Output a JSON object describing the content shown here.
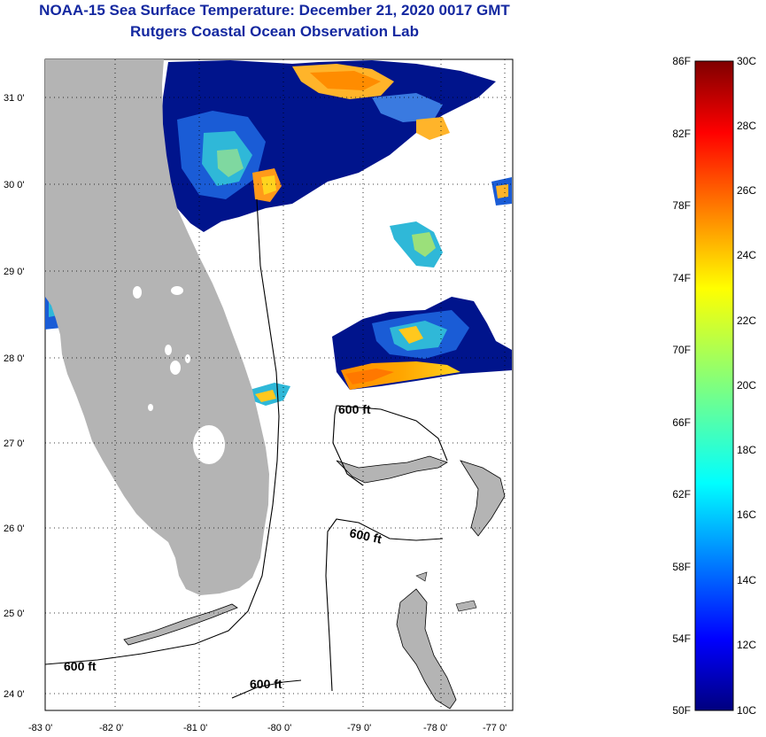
{
  "header": {
    "title_line1": "NOAA-15 Sea Surface Temperature:  December 21, 2020 0017 GMT",
    "title_line2": "Rutgers Coastal Ocean Observation Lab"
  },
  "map": {
    "lon_labels": [
      "-83 0'",
      "-82 0'",
      "-81 0'",
      "-80 0'",
      "-79 0'",
      "-78 0'",
      "-77 0'"
    ],
    "lat_labels": [
      "31 0'",
      "30 0'",
      "29 0'",
      "28 0'",
      "27 0'",
      "26 0'",
      "25 0'",
      "24 0'"
    ],
    "isobath_labels": [
      "600 ft",
      "600 ft",
      "600 ft",
      "600 ft"
    ],
    "colors": {
      "land": "#b4b4b4",
      "ocean": "#ffffff",
      "cold": "#00008c",
      "warm": "#ff8c00"
    }
  },
  "colorbar": {
    "fahrenheit_labels": [
      "86F",
      "82F",
      "78F",
      "74F",
      "70F",
      "66F",
      "62F",
      "58F",
      "54F",
      "50F"
    ],
    "celsius_labels": [
      "30C",
      "28C",
      "26C",
      "24C",
      "22C",
      "20C",
      "18C",
      "16C",
      "14C",
      "12C",
      "10C"
    ]
  }
}
